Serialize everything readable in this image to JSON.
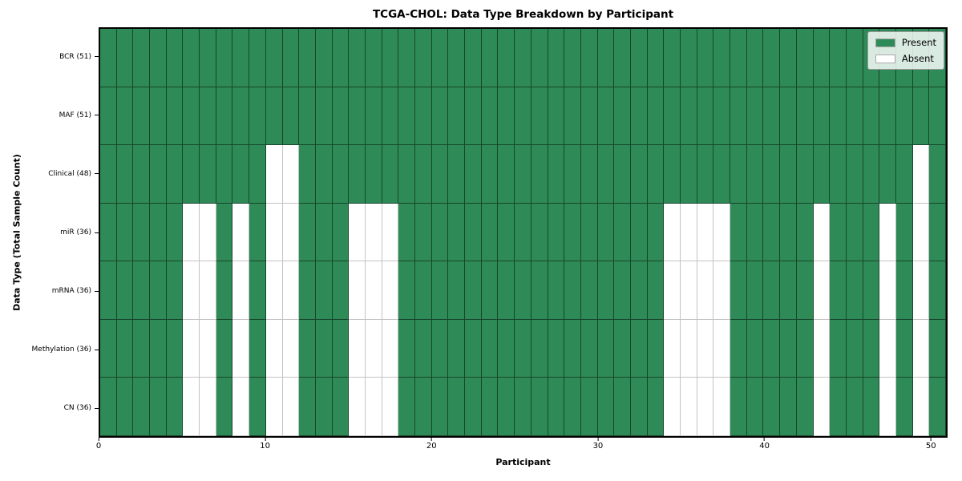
{
  "chart_data": {
    "type": "heatmap",
    "title": "TCGA-CHOL: Data Type Breakdown by Participant",
    "xlabel": "Participant",
    "ylabel": "Data Type (Total Sample Count)",
    "n_participants": 51,
    "x_range": [
      0,
      51
    ],
    "x_ticks": [
      0,
      10,
      20,
      30,
      40,
      50
    ],
    "grid": true,
    "legend_position": "upper right",
    "colors": {
      "present": "#2e8b57",
      "absent": "#ffffff",
      "present_edge": "rgba(0,0,0,0.5)",
      "absent_edge": "#c3c3c3",
      "spine": "#000000"
    },
    "legend": [
      {
        "label": "Present",
        "color": "#2e8b57"
      },
      {
        "label": "Absent",
        "color": "#ffffff"
      }
    ],
    "rows": [
      {
        "label": "BCR (51)",
        "data_type": "BCR",
        "total_present": 51,
        "absent_participants": []
      },
      {
        "label": "MAF (51)",
        "data_type": "MAF",
        "total_present": 51,
        "absent_participants": []
      },
      {
        "label": "Clinical (48)",
        "data_type": "Clinical",
        "total_present": 48,
        "absent_participants": [
          10,
          11,
          49
        ]
      },
      {
        "label": "miR (36)",
        "data_type": "miR",
        "total_present": 36,
        "absent_participants": [
          5,
          6,
          8,
          10,
          11,
          15,
          16,
          17,
          34,
          35,
          36,
          37,
          43,
          47,
          49
        ]
      },
      {
        "label": "mRNA (36)",
        "data_type": "mRNA",
        "total_present": 36,
        "absent_participants": [
          5,
          6,
          8,
          10,
          11,
          15,
          16,
          17,
          34,
          35,
          36,
          37,
          43,
          47,
          49
        ]
      },
      {
        "label": "Methylation (36)",
        "data_type": "Methylation",
        "total_present": 36,
        "absent_participants": [
          5,
          6,
          8,
          10,
          11,
          15,
          16,
          17,
          34,
          35,
          36,
          37,
          43,
          47,
          49
        ]
      },
      {
        "label": "CN (36)",
        "data_type": "CN",
        "total_present": 36,
        "absent_participants": [
          5,
          6,
          8,
          10,
          11,
          15,
          16,
          17,
          34,
          35,
          36,
          37,
          43,
          47,
          49
        ]
      }
    ]
  }
}
